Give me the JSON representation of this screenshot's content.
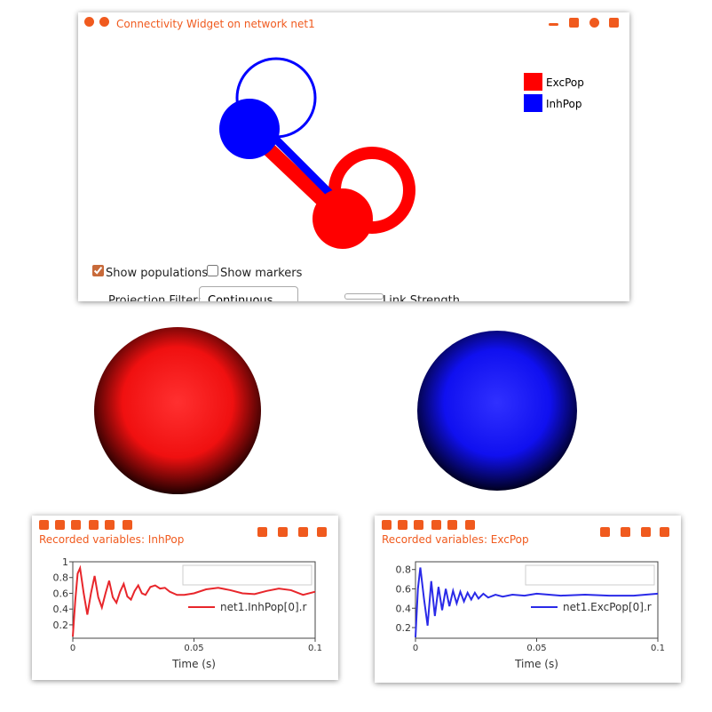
{
  "connectivity_widget": {
    "title": "Connectivity Widget on network net1",
    "legend": [
      {
        "name": "ExcPop",
        "color": "#ff0000"
      },
      {
        "name": "InhPop",
        "color": "#0000ff"
      }
    ],
    "show_populations": {
      "label": "Show populations",
      "checked": true
    },
    "show_markers": {
      "label": "Show markers",
      "checked": false
    },
    "projection_filter_label": "Projection Filter:",
    "projection_filter_value": "Continuous",
    "link_strength_label": "Link Strength"
  },
  "chart_data": [
    {
      "type": "line",
      "title": "Recorded variables: InhPop",
      "xlabel": "Time (s)",
      "x": [
        0,
        0.001,
        0.002,
        0.003,
        0.0045,
        0.006,
        0.0075,
        0.009,
        0.0105,
        0.012,
        0.0135,
        0.015,
        0.0165,
        0.018,
        0.0195,
        0.021,
        0.0225,
        0.024,
        0.0255,
        0.027,
        0.0285,
        0.03,
        0.032,
        0.034,
        0.036,
        0.038,
        0.04,
        0.043,
        0.046,
        0.05,
        0.055,
        0.06,
        0.065,
        0.07,
        0.075,
        0.08,
        0.085,
        0.09,
        0.095,
        0.1
      ],
      "series": [
        {
          "name": "net1.InhPop[0].r",
          "color": "#e8262b",
          "values": [
            0.05,
            0.5,
            0.85,
            0.92,
            0.6,
            0.33,
            0.6,
            0.82,
            0.55,
            0.42,
            0.6,
            0.76,
            0.55,
            0.48,
            0.62,
            0.72,
            0.56,
            0.52,
            0.63,
            0.7,
            0.6,
            0.58,
            0.68,
            0.7,
            0.66,
            0.67,
            0.62,
            0.58,
            0.58,
            0.6,
            0.65,
            0.67,
            0.64,
            0.6,
            0.59,
            0.63,
            0.66,
            0.64,
            0.58,
            0.62
          ]
        }
      ],
      "xlim": [
        0,
        0.1
      ],
      "xticks": [
        0,
        0.05,
        0.1
      ],
      "ylim": [
        0.03,
        1
      ],
      "yticks": [
        0.2,
        0.4,
        0.6,
        0.8,
        1
      ]
    },
    {
      "type": "line",
      "title": "Recorded variables: ExcPop",
      "xlabel": "Time (s)",
      "x": [
        0,
        0.001,
        0.002,
        0.0035,
        0.005,
        0.0065,
        0.008,
        0.0095,
        0.011,
        0.0125,
        0.014,
        0.0155,
        0.017,
        0.0185,
        0.02,
        0.0215,
        0.023,
        0.0245,
        0.026,
        0.028,
        0.03,
        0.033,
        0.036,
        0.04,
        0.045,
        0.05,
        0.055,
        0.06,
        0.07,
        0.08,
        0.09,
        0.1
      ],
      "series": [
        {
          "name": "net1.ExcPop[0].r",
          "color": "#2a2ae8",
          "values": [
            0.1,
            0.6,
            0.82,
            0.5,
            0.22,
            0.68,
            0.32,
            0.62,
            0.38,
            0.6,
            0.42,
            0.58,
            0.45,
            0.57,
            0.47,
            0.56,
            0.49,
            0.56,
            0.5,
            0.55,
            0.51,
            0.54,
            0.52,
            0.54,
            0.53,
            0.55,
            0.54,
            0.53,
            0.54,
            0.53,
            0.53,
            0.55
          ]
        }
      ],
      "xlim": [
        0,
        0.1
      ],
      "xticks": [
        0,
        0.05,
        0.1
      ],
      "ylim": [
        0.09,
        0.88
      ],
      "yticks": [
        0.2,
        0.4,
        0.6,
        0.8
      ]
    }
  ]
}
